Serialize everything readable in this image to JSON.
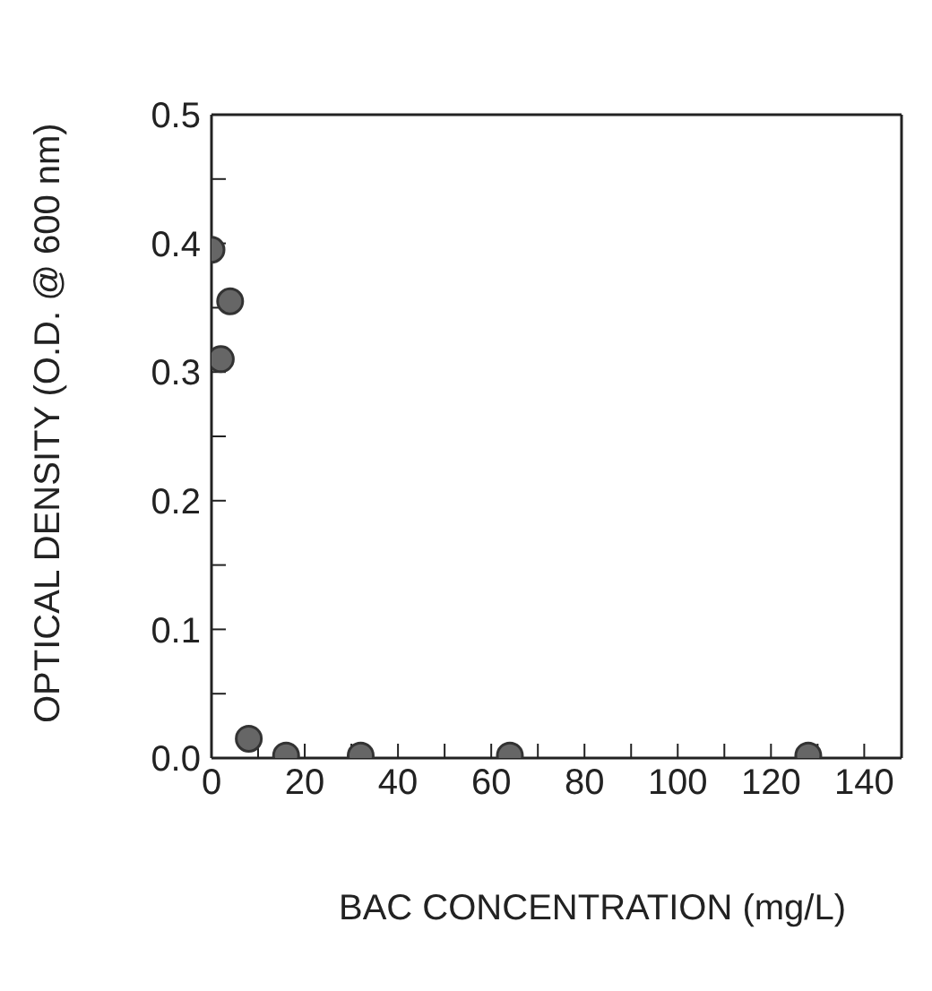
{
  "chart_data": {
    "type": "scatter",
    "xlabel": "BAC CONCENTRATION (mg/L)",
    "ylabel": "OPTICAL DENSITY (O.D. @ 600 nm)",
    "x": [
      0,
      2,
      4,
      8,
      16,
      32,
      64,
      128
    ],
    "series": [
      {
        "color": "#666666",
        "values": [
          0.395,
          0.31,
          0.355,
          0.015,
          0.002,
          0.002,
          0.002,
          0.002
        ]
      }
    ],
    "xlim": [
      0,
      148
    ],
    "xticks": [
      0,
      {
        "value": 10,
        "label": null
      },
      20,
      {
        "value": 30,
        "label": null
      },
      40,
      {
        "value": 50,
        "label": null
      },
      60,
      {
        "value": 70,
        "label": null
      },
      80,
      {
        "value": 90,
        "label": null
      },
      100,
      {
        "value": 110,
        "label": null
      },
      120,
      {
        "value": 130,
        "label": null
      },
      140
    ],
    "ylim": [
      0,
      0.5
    ],
    "yticks": [
      {
        "value": 0,
        "label": "0.0"
      },
      {
        "value": 0.05,
        "label": null
      },
      0.1,
      {
        "value": 0.15,
        "label": null
      },
      0.2,
      {
        "value": 0.25,
        "label": null
      },
      0.3,
      {
        "value": 0.35,
        "label": null
      },
      0.4,
      {
        "value": 0.45,
        "label": null
      },
      0.5
    ],
    "marker": "circle"
  }
}
